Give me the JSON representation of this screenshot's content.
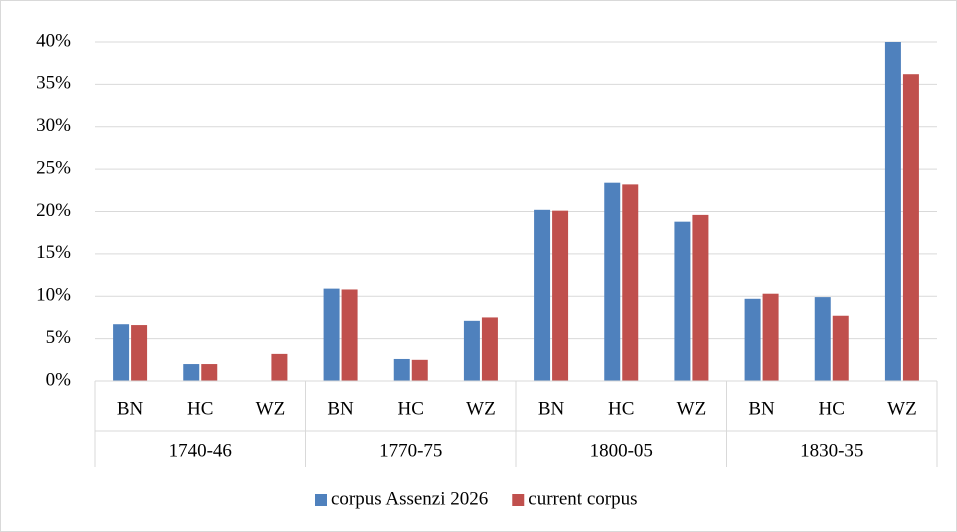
{
  "chart_data": {
    "type": "bar",
    "categories": [
      "BN",
      "HC",
      "WZ",
      "BN",
      "HC",
      "WZ",
      "BN",
      "HC",
      "WZ",
      "BN",
      "HC",
      "WZ"
    ],
    "groups": [
      "1740-46",
      "1770-75",
      "1800-05",
      "1830-35"
    ],
    "series": [
      {
        "name": "corpus Assenzi 2026",
        "color": "#4f81bd",
        "values": [
          6.7,
          2.0,
          null,
          10.9,
          2.6,
          7.1,
          20.2,
          23.4,
          18.8,
          9.7,
          9.9,
          40.0
        ]
      },
      {
        "name": "current corpus",
        "color": "#c0504d",
        "values": [
          6.6,
          2.0,
          3.2,
          10.8,
          2.5,
          7.5,
          20.1,
          23.2,
          19.6,
          10.3,
          7.7,
          36.2
        ]
      }
    ],
    "ylim": [
      0,
      40
    ],
    "yticks": [
      {
        "value": 0,
        "label": "0%"
      },
      {
        "value": 5,
        "label": "5%"
      },
      {
        "value": 10,
        "label": "10%"
      },
      {
        "value": 15,
        "label": "15%"
      },
      {
        "value": 20,
        "label": "20%"
      },
      {
        "value": 25,
        "label": "25%"
      },
      {
        "value": 30,
        "label": "30%"
      },
      {
        "value": 35,
        "label": "35%"
      },
      {
        "value": 40,
        "label": "40%"
      }
    ],
    "grid": true,
    "legend": "bottom"
  }
}
